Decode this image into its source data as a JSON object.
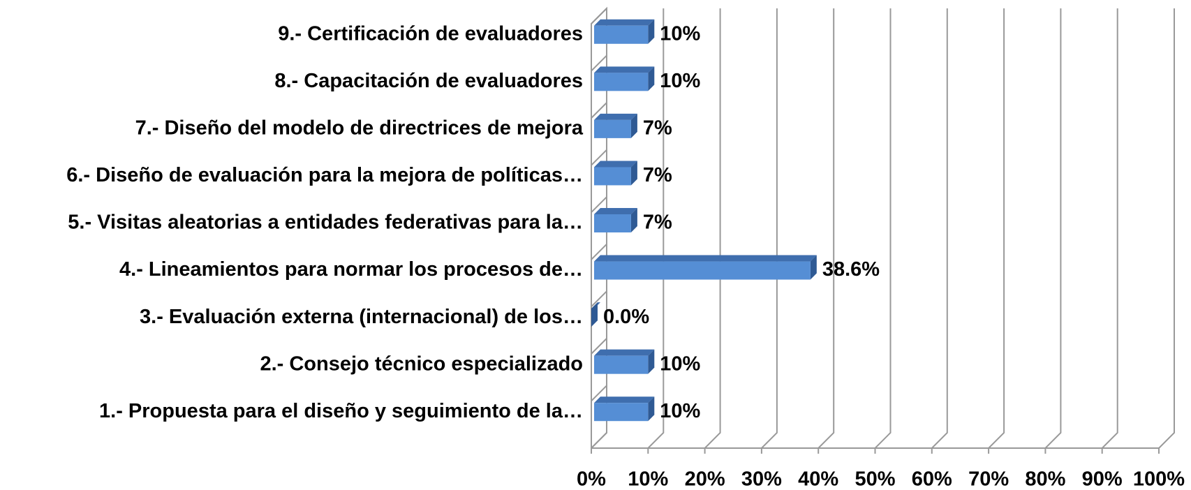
{
  "chart_data": {
    "type": "bar",
    "orientation": "horizontal",
    "categories": [
      "1.- Propuesta para el diseño y seguimiento de la…",
      "2.- Consejo técnico especializado",
      "3.- Evaluación externa (internacional) de los…",
      "4.- Lineamientos para normar los procesos de…",
      "5.- Visitas aleatorias a entidades federativas para la…",
      "6.- Diseño de evaluación para la mejora de políticas…",
      "7.- Diseño del modelo de directrices de mejora",
      "8.- Capacitación de evaluadores",
      "9.- Certificación de evaluadores"
    ],
    "values": [
      10,
      10,
      0.0,
      38.6,
      7,
      7,
      7,
      10,
      10
    ],
    "value_labels": [
      "10%",
      "10%",
      "0.0%",
      "38.6%",
      "7%",
      "7%",
      "7%",
      "10%",
      "10%"
    ],
    "color": "#558ed5",
    "xlim": [
      0,
      100
    ],
    "xticks": [
      {
        "value": 0,
        "label": "0%"
      },
      {
        "value": 10,
        "label": "10%"
      },
      {
        "value": 20,
        "label": "20%"
      },
      {
        "value": 30,
        "label": "30%"
      },
      {
        "value": 40,
        "label": "40%"
      },
      {
        "value": 50,
        "label": "50%"
      },
      {
        "value": 60,
        "label": "60%"
      },
      {
        "value": 70,
        "label": "70%"
      },
      {
        "value": 80,
        "label": "80%"
      },
      {
        "value": 90,
        "label": "90%"
      },
      {
        "value": 100,
        "label": "100%"
      }
    ],
    "grid": true
  }
}
